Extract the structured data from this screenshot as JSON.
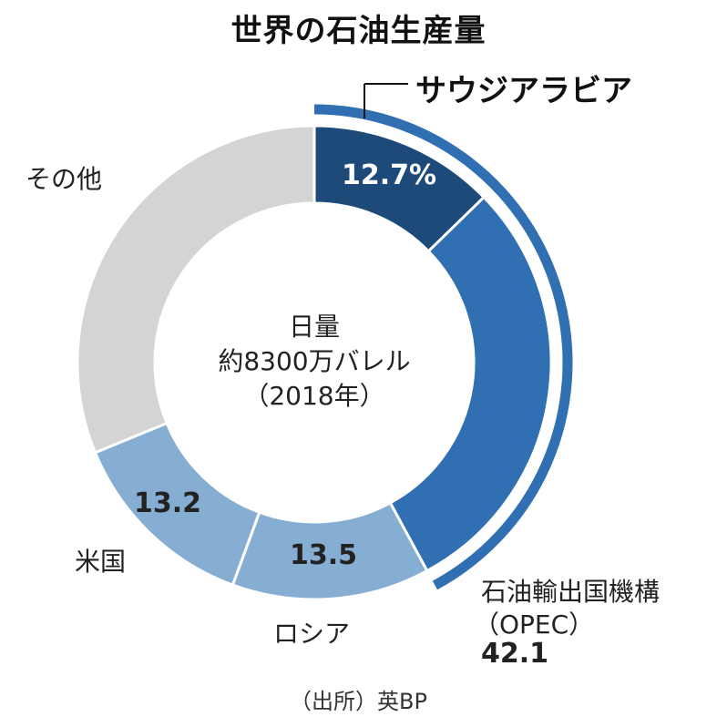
{
  "title": "世界の石油生産量",
  "center": {
    "line1": "日量",
    "line2": "約8300万バレル",
    "line3": "（2018年）"
  },
  "source": "（出所）英BP",
  "colors": {
    "saudi": "#1e4a7a",
    "opec_other": "#2f6fb2",
    "russia": "#86aed3",
    "usa": "#86aed3",
    "other": "#d4d4d4",
    "bracket": "#2f6fb2"
  },
  "chart_data": {
    "type": "pie",
    "title": "世界の石油生産量",
    "slices": [
      {
        "label": "サウジアラビア",
        "value": 12.7,
        "display": "12.7%"
      },
      {
        "label": "",
        "value": 29.4,
        "display": ""
      },
      {
        "label": "ロシア",
        "value": 13.5,
        "display": "13.5"
      },
      {
        "label": "米国",
        "value": 13.2,
        "display": "13.2"
      },
      {
        "label": "その他",
        "value": 31.2,
        "display": ""
      }
    ],
    "group": {
      "label_line1": "石油輸出国機構",
      "label_line2": "（OPEC）",
      "value": "42.1"
    }
  }
}
